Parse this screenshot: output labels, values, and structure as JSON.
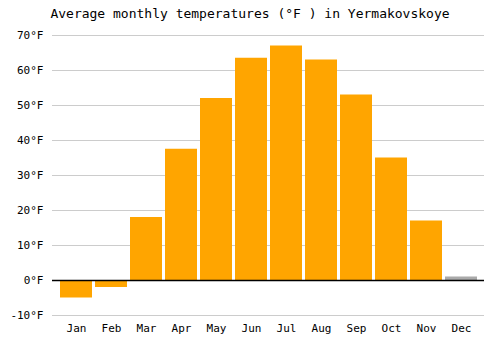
{
  "chart_data": {
    "type": "bar",
    "title": "Average monthly temperatures (°F ) in Yermakovskoye",
    "categories": [
      "Jan",
      "Feb",
      "Mar",
      "Apr",
      "May",
      "Jun",
      "Jul",
      "Aug",
      "Sep",
      "Oct",
      "Nov",
      "Dec"
    ],
    "values": [
      -5.0,
      -2.0,
      18.0,
      37.5,
      52.0,
      63.5,
      67.0,
      63.0,
      53.0,
      35.0,
      17.0,
      1.0
    ],
    "colors": [
      "#FFA500",
      "#FFA500",
      "#FFA500",
      "#FFA500",
      "#FFA500",
      "#FFA500",
      "#FFA500",
      "#FFA500",
      "#FFA500",
      "#FFA500",
      "#FFA500",
      "#AAAAAA"
    ],
    "ylim": [
      -10,
      70
    ],
    "yticks": [
      {
        "value": -10,
        "label": "-10°F"
      },
      {
        "value": 0,
        "label": "0°F"
      },
      {
        "value": 10,
        "label": "10°F"
      },
      {
        "value": 20,
        "label": "20°F"
      },
      {
        "value": 30,
        "label": "30°F"
      },
      {
        "value": 40,
        "label": "40°F"
      },
      {
        "value": 50,
        "label": "50°F"
      },
      {
        "value": 60,
        "label": "60°F"
      },
      {
        "value": 70,
        "label": "70°F"
      }
    ],
    "grid": true
  }
}
